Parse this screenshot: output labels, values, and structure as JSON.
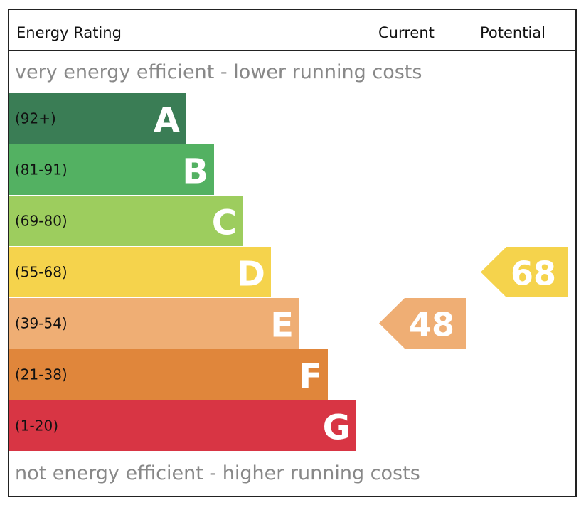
{
  "header": {
    "title": "Energy Rating",
    "current_label": "Current",
    "potential_label": "Potential"
  },
  "top_caption": "very energy efficient - lower running costs",
  "bottom_caption": "not energy efficient - higher running costs",
  "chart_data": {
    "type": "bar",
    "bands": [
      {
        "letter": "A",
        "range": "(92+)",
        "min": 92,
        "max": 100,
        "color": "#3a7d55"
      },
      {
        "letter": "B",
        "range": "(81-91)",
        "min": 81,
        "max": 91,
        "color": "#53b162"
      },
      {
        "letter": "C",
        "range": "(69-80)",
        "min": 69,
        "max": 80,
        "color": "#9dcd5e"
      },
      {
        "letter": "D",
        "range": "(55-68)",
        "min": 55,
        "max": 68,
        "color": "#f5d34c"
      },
      {
        "letter": "E",
        "range": "(39-54)",
        "min": 39,
        "max": 54,
        "color": "#efae74"
      },
      {
        "letter": "F",
        "range": "(21-38)",
        "min": 21,
        "max": 38,
        "color": "#e0863b"
      },
      {
        "letter": "G",
        "range": "(1-20)",
        "min": 1,
        "max": 20,
        "color": "#d83544"
      }
    ],
    "current": {
      "value": 48,
      "band": "E",
      "color": "#efae74"
    },
    "potential": {
      "value": 68,
      "band": "D",
      "color": "#f5d34c"
    }
  }
}
